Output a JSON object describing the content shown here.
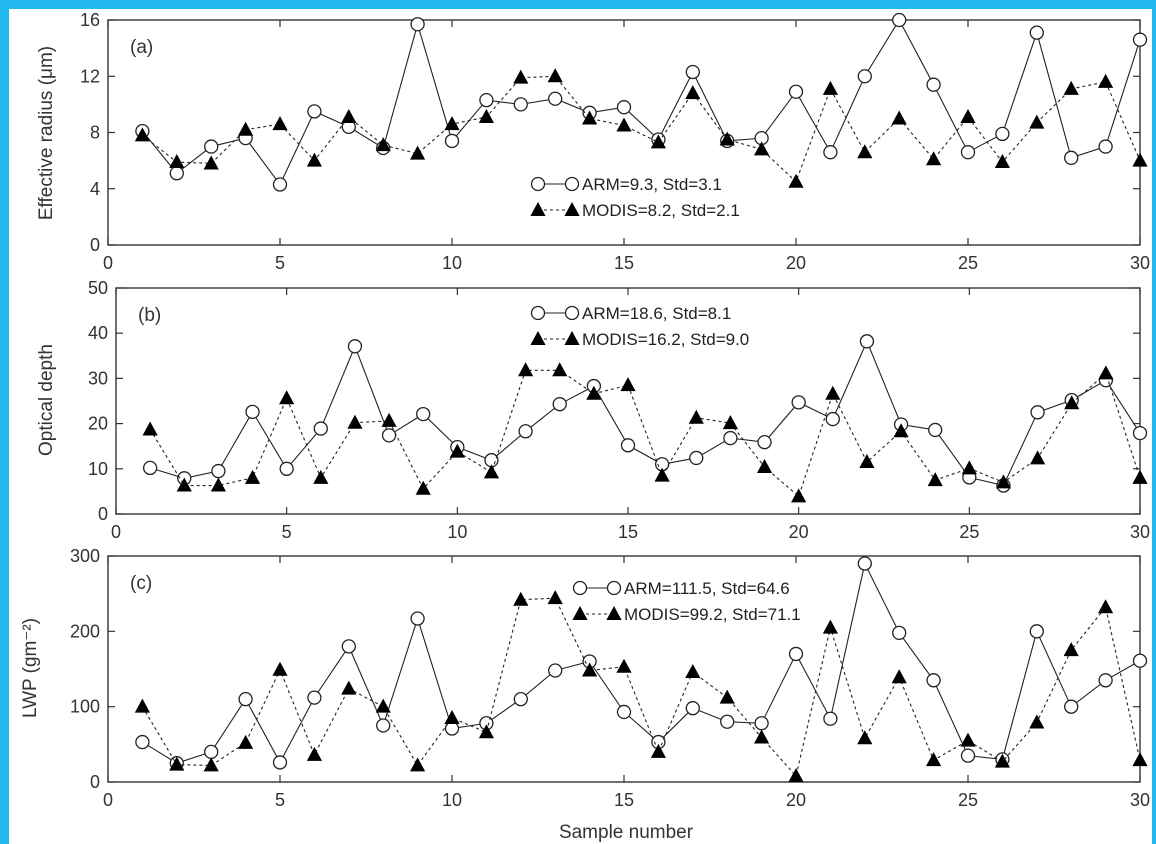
{
  "accent_color": "#22b8f0",
  "xlabel": "Sample number",
  "chart_data": [
    {
      "type": "line",
      "panel_label": "(a)",
      "ylabel": "Effective radius (μm)",
      "xlim": [
        0,
        30
      ],
      "ylim": [
        0,
        16
      ],
      "xticks": [
        0,
        5,
        10,
        15,
        20,
        25,
        30
      ],
      "yticks": [
        0,
        4,
        8,
        12,
        16
      ],
      "x": [
        1,
        2,
        3,
        4,
        5,
        6,
        7,
        8,
        9,
        10,
        11,
        12,
        13,
        14,
        15,
        16,
        17,
        18,
        19,
        20,
        21,
        22,
        23,
        24,
        25,
        26,
        27,
        28,
        29,
        30
      ],
      "series": [
        {
          "name": "ARM=9.3, Std=3.1",
          "marker": "circle",
          "line": "solid",
          "values": [
            8.1,
            5.1,
            7.0,
            7.6,
            4.3,
            9.5,
            8.4,
            6.9,
            15.7,
            7.4,
            10.3,
            10.0,
            10.4,
            9.4,
            9.8,
            7.5,
            12.3,
            7.4,
            7.6,
            10.9,
            6.6,
            12.0,
            16.0,
            11.4,
            6.6,
            7.9,
            15.1,
            6.2,
            7.0,
            14.6
          ]
        },
        {
          "name": "MODIS=8.2, Std=2.1",
          "marker": "triangle",
          "line": "dashed",
          "values": [
            7.8,
            5.9,
            5.8,
            8.2,
            8.6,
            6.0,
            9.1,
            7.1,
            6.5,
            8.6,
            9.1,
            11.9,
            12.0,
            9.0,
            8.5,
            7.3,
            10.8,
            7.5,
            6.8,
            4.5,
            11.1,
            6.6,
            9.0,
            6.1,
            9.1,
            5.9,
            8.7,
            11.1,
            11.6,
            6.0
          ]
        }
      ]
    },
    {
      "type": "line",
      "panel_label": "(b)",
      "ylabel": "Optical depth",
      "xlim": [
        0,
        30
      ],
      "ylim": [
        0,
        50
      ],
      "xticks": [
        0,
        5,
        10,
        15,
        20,
        25,
        30
      ],
      "yticks": [
        0,
        10,
        20,
        30,
        40,
        50
      ],
      "x": [
        1,
        2,
        3,
        4,
        5,
        6,
        7,
        8,
        9,
        10,
        11,
        12,
        13,
        14,
        15,
        16,
        17,
        18,
        19,
        20,
        21,
        22,
        23,
        24,
        25,
        26,
        27,
        28,
        29,
        30
      ],
      "series": [
        {
          "name": "ARM=18.6, Std=8.1",
          "marker": "circle",
          "line": "solid",
          "values": [
            10.2,
            7.9,
            9.5,
            22.6,
            10.0,
            18.9,
            37.1,
            17.4,
            22.1,
            14.8,
            11.9,
            18.3,
            24.3,
            28.3,
            15.2,
            11.0,
            12.4,
            16.8,
            15.9,
            24.7,
            21.0,
            38.2,
            19.8,
            18.6,
            8.1,
            6.3,
            22.5,
            25.2,
            29.6,
            17.9
          ]
        },
        {
          "name": "MODIS=16.2, Std=9.0",
          "marker": "triangle",
          "line": "dashed",
          "values": [
            18.7,
            6.3,
            6.3,
            8.0,
            25.6,
            8.0,
            20.2,
            20.6,
            5.6,
            13.8,
            9.2,
            31.8,
            31.8,
            26.6,
            28.5,
            8.5,
            21.3,
            20.1,
            10.4,
            3.9,
            26.6,
            11.5,
            18.3,
            7.5,
            10.1,
            7.0,
            12.3,
            24.5,
            31.1,
            8.0
          ]
        }
      ]
    },
    {
      "type": "line",
      "panel_label": "(c)",
      "ylabel": "LWP (gm⁻²)",
      "xlim": [
        0,
        30
      ],
      "ylim": [
        0,
        300
      ],
      "xticks": [
        0,
        5,
        10,
        15,
        20,
        25,
        30
      ],
      "yticks": [
        0,
        100,
        200,
        300
      ],
      "x": [
        1,
        2,
        3,
        4,
        5,
        6,
        7,
        8,
        9,
        10,
        11,
        12,
        13,
        14,
        15,
        16,
        17,
        18,
        19,
        20,
        21,
        22,
        23,
        24,
        25,
        26,
        27,
        28,
        29,
        30
      ],
      "series": [
        {
          "name": "ARM=111.5, Std=64.6",
          "marker": "circle",
          "line": "solid",
          "values": [
            53,
            25,
            40,
            110,
            26,
            112,
            180,
            75,
            217,
            71,
            78,
            110,
            148,
            160,
            93,
            53,
            98,
            80,
            78,
            170,
            84,
            290,
            198,
            135,
            35,
            30,
            200,
            100,
            135,
            161
          ]
        },
        {
          "name": "MODIS=99.2, Std=71.1",
          "marker": "triangle",
          "line": "dashed",
          "values": [
            100,
            23,
            22,
            52,
            149,
            36,
            124,
            100,
            22,
            85,
            66,
            242,
            244,
            148,
            153,
            40,
            146,
            112,
            59,
            8,
            205,
            58,
            139,
            29,
            55,
            27,
            79,
            175,
            232,
            29
          ]
        }
      ]
    }
  ]
}
